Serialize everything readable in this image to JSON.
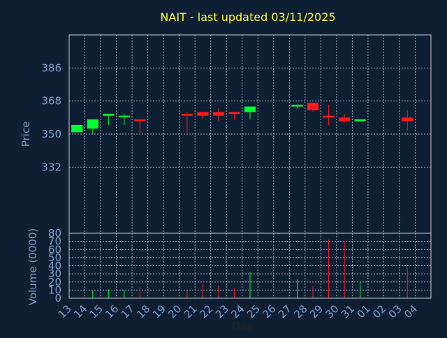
{
  "chart_data": [
    {
      "type": "candlestick",
      "title": "NAIT - last updated 03/11/2025",
      "xlabel": "",
      "ylabel": "Price",
      "ylim": [
        296,
        404
      ],
      "yticks": [
        332,
        350,
        368,
        386
      ],
      "grid": true,
      "categories": [
        "13",
        "14",
        "15",
        "16",
        "17",
        "18",
        "19",
        "20",
        "21",
        "22",
        "23",
        "24",
        "25",
        "26",
        "27",
        "28",
        "29",
        "30",
        "31",
        "01",
        "02",
        "03",
        "04"
      ],
      "candles": [
        {
          "day": "13",
          "open": 351,
          "close": 355,
          "high": 355,
          "low": 351
        },
        {
          "day": "14",
          "open": 353,
          "close": 358,
          "high": 358,
          "low": 350
        },
        {
          "day": "15",
          "open": 360,
          "close": 361,
          "high": 361,
          "low": 355
        },
        {
          "day": "16",
          "open": 359.5,
          "close": 360,
          "high": 361,
          "low": 355
        },
        {
          "day": "17",
          "open": 358,
          "close": 357,
          "high": 358,
          "low": 350
        },
        {
          "day": "20",
          "open": 361,
          "close": 360,
          "high": 362,
          "low": 351
        },
        {
          "day": "21",
          "open": 362,
          "close": 360,
          "high": 362,
          "low": 358
        },
        {
          "day": "22",
          "open": 362,
          "close": 360,
          "high": 364,
          "low": 357
        },
        {
          "day": "23",
          "open": 362,
          "close": 361,
          "high": 362,
          "low": 358
        },
        {
          "day": "24",
          "open": 362,
          "close": 365,
          "high": 365,
          "low": 358
        },
        {
          "day": "27",
          "open": 365,
          "close": 366,
          "high": 366,
          "low": 364
        },
        {
          "day": "28",
          "open": 367,
          "close": 363,
          "high": 367,
          "low": 362
        },
        {
          "day": "29",
          "open": 360,
          "close": 359,
          "high": 366,
          "low": 355
        },
        {
          "day": "30",
          "open": 359,
          "close": 357,
          "high": 361,
          "low": 356
        },
        {
          "day": "31",
          "open": 357,
          "close": 358,
          "high": 358,
          "low": 357
        },
        {
          "day": "03",
          "open": 359,
          "close": 357,
          "high": 363,
          "low": 352
        }
      ]
    },
    {
      "type": "bar",
      "ylabel": "Volume (0000)",
      "xlabel": "Day",
      "ylim": [
        0,
        80
      ],
      "yticks": [
        0,
        10,
        20,
        30,
        40,
        50,
        60,
        70,
        80
      ],
      "categories": [
        "13",
        "14",
        "15",
        "16",
        "17",
        "18",
        "19",
        "20",
        "21",
        "22",
        "23",
        "24",
        "25",
        "26",
        "27",
        "28",
        "29",
        "30",
        "31",
        "01",
        "02",
        "03",
        "04"
      ],
      "bars": [
        {
          "day": "14",
          "value": 9,
          "direction": "up"
        },
        {
          "day": "15",
          "value": 11,
          "direction": "up"
        },
        {
          "day": "16",
          "value": 10,
          "direction": "up"
        },
        {
          "day": "17",
          "value": 14,
          "direction": "down"
        },
        {
          "day": "20",
          "value": 9,
          "direction": "down"
        },
        {
          "day": "21",
          "value": 17,
          "direction": "down"
        },
        {
          "day": "22",
          "value": 16,
          "direction": "down"
        },
        {
          "day": "23",
          "value": 12,
          "direction": "down"
        },
        {
          "day": "24",
          "value": 32,
          "direction": "up"
        },
        {
          "day": "27",
          "value": 23,
          "direction": "up"
        },
        {
          "day": "28",
          "value": 15,
          "direction": "down"
        },
        {
          "day": "29",
          "value": 72,
          "direction": "down"
        },
        {
          "day": "30",
          "value": 70,
          "direction": "down"
        },
        {
          "day": "31",
          "value": 21,
          "direction": "up"
        },
        {
          "day": "03",
          "value": 38,
          "direction": "down"
        }
      ]
    }
  ],
  "colors": {
    "background": "#0f1f33",
    "title": "#ffff33",
    "axis_text": "#7f9fc7",
    "frame": "#c8c8c8",
    "grid": "#9aa8b8",
    "up": "#00ff33",
    "down": "#ff1a1a"
  }
}
